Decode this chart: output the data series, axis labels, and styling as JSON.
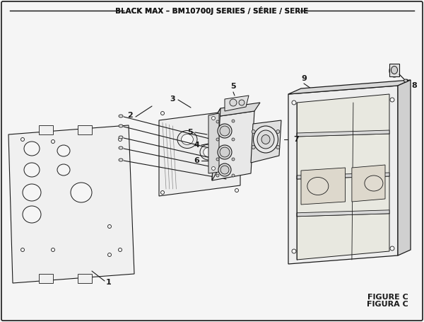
{
  "title": "BLACK MAX – BM10700J SERIES / SÉRIE / SERIE",
  "figure_label": "FIGURE C",
  "figura_label": "FIGURA C",
  "bg_color": "#f5f5f5",
  "line_color": "#1a1a1a",
  "figsize": [
    6.0,
    4.55
  ],
  "dpi": 100
}
